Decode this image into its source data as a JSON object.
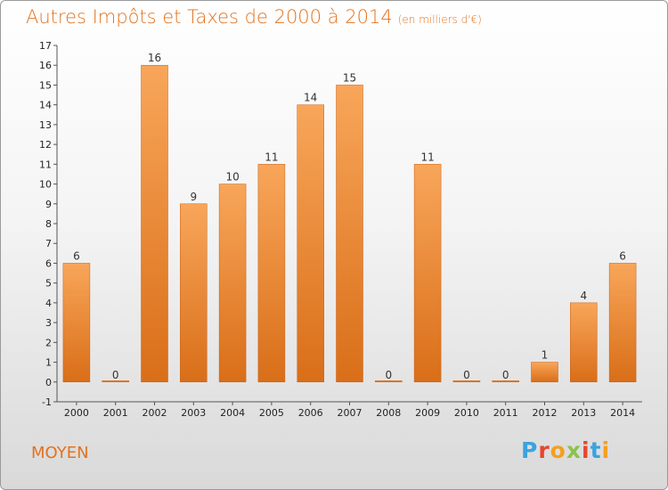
{
  "header": {
    "title": "Autres Impôts et Taxes de 2000 à 2014",
    "subtitle": "(en milliers d'€)"
  },
  "commune": "MOYEN",
  "logo": {
    "text": "Proxiti",
    "colors": [
      "#3aa3e0",
      "#e8452c",
      "#f4a020",
      "#8bc34a",
      "#e8452c",
      "#3aa3e0",
      "#f4a020"
    ]
  },
  "colors": {
    "accent": "#e2731f",
    "bar_top": "#f8a65a",
    "bar_bottom": "#d96e18"
  },
  "chart_data": {
    "type": "bar",
    "title": "Autres Impôts et Taxes de 2000 à 2014",
    "subtitle": "(en milliers d'€)",
    "categories": [
      "2000",
      "2001",
      "2002",
      "2003",
      "2004",
      "2005",
      "2006",
      "2007",
      "2008",
      "2009",
      "2010",
      "2011",
      "2012",
      "2013",
      "2014"
    ],
    "values": [
      6,
      0,
      16,
      9,
      10,
      11,
      14,
      15,
      0,
      11,
      0,
      0,
      1,
      4,
      6
    ],
    "value_labels": [
      "6",
      "0",
      "16",
      "9",
      "10",
      "11",
      "14",
      "15",
      "0",
      "11",
      "0",
      "0",
      "1",
      "4",
      "6"
    ],
    "ylim": [
      -1,
      17
    ],
    "yticks": [
      -1,
      0,
      1,
      2,
      3,
      4,
      5,
      6,
      7,
      8,
      9,
      10,
      11,
      12,
      13,
      14,
      15,
      16,
      17
    ],
    "grid": false,
    "xlabel": "",
    "ylabel": ""
  }
}
